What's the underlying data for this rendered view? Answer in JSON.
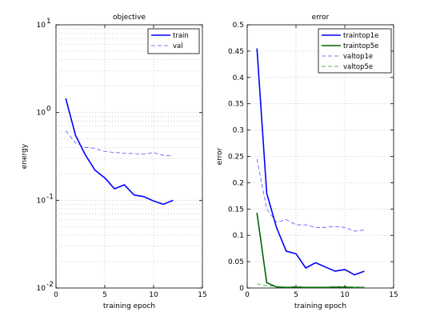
{
  "chart_data": [
    {
      "type": "line",
      "title": "objective",
      "xlabel": "training epoch",
      "ylabel": "energy",
      "xlim": [
        0,
        15
      ],
      "ylim": [
        0.01,
        10
      ],
      "yscale": "log",
      "xticks": [
        0,
        5,
        10,
        15
      ],
      "yticks": [
        {
          "value": 0.01,
          "base": "10",
          "exp": "-2"
        },
        {
          "value": 0.1,
          "base": "10",
          "exp": "-1"
        },
        {
          "value": 1,
          "base": "10",
          "exp": "0"
        },
        {
          "value": 10,
          "base": "10",
          "exp": "1"
        }
      ],
      "grid": true,
      "legend_position": "top-right",
      "series": [
        {
          "name": "train",
          "color": "#0000ff",
          "style": "solid",
          "width": 1.6,
          "x": [
            1,
            2,
            3,
            4,
            5,
            6,
            7,
            8,
            9,
            10,
            11,
            12
          ],
          "y": [
            1.45,
            0.55,
            0.33,
            0.22,
            0.18,
            0.135,
            0.15,
            0.115,
            0.11,
            0.098,
            0.09,
            0.1
          ]
        },
        {
          "name": "val",
          "color": "#5555ff",
          "style": "dashed",
          "width": 0.8,
          "x": [
            1,
            2,
            3,
            4,
            5,
            6,
            7,
            8,
            9,
            10,
            11,
            12
          ],
          "y": [
            0.62,
            0.45,
            0.4,
            0.39,
            0.36,
            0.35,
            0.345,
            0.34,
            0.335,
            0.35,
            0.325,
            0.32
          ]
        }
      ]
    },
    {
      "type": "line",
      "title": "error",
      "xlabel": "training epoch",
      "ylabel": "error",
      "xlim": [
        0,
        15
      ],
      "ylim": [
        0,
        0.5
      ],
      "xticks": [
        0,
        5,
        10,
        15
      ],
      "yticks": [
        0,
        0.05,
        0.1,
        0.15,
        0.2,
        0.25,
        0.3,
        0.35,
        0.4,
        0.45,
        0.5
      ],
      "ytick_labels": [
        "0",
        "0.05",
        "0.1",
        "0.15",
        "0.2",
        "0.25",
        "0.3",
        "0.35",
        "0.4",
        "0.45",
        "0.5"
      ],
      "grid": true,
      "legend_position": "top-right",
      "series": [
        {
          "name": "traintop1e",
          "color": "#0000ff",
          "style": "solid",
          "width": 1.6,
          "x": [
            1,
            2,
            3,
            4,
            5,
            6,
            7,
            8,
            9,
            10,
            11,
            12
          ],
          "y": [
            0.455,
            0.18,
            0.115,
            0.07,
            0.065,
            0.038,
            0.048,
            0.04,
            0.032,
            0.035,
            0.025,
            0.032
          ]
        },
        {
          "name": "traintop5e",
          "color": "#006600",
          "style": "solid",
          "width": 1.6,
          "x": [
            1,
            2,
            3,
            4,
            5,
            6,
            7,
            8,
            9,
            10,
            11,
            12
          ],
          "y": [
            0.143,
            0.01,
            0.002,
            0.001,
            0.002,
            0.001,
            0.001,
            0.001,
            0.002,
            0.002,
            0.001,
            0.001
          ]
        },
        {
          "name": "valtop1e",
          "color": "#5555ff",
          "style": "dashed",
          "width": 0.8,
          "x": [
            1,
            2,
            3,
            4,
            5,
            6,
            7,
            8,
            9,
            10,
            11,
            12
          ],
          "y": [
            0.245,
            0.15,
            0.125,
            0.13,
            0.12,
            0.12,
            0.115,
            0.115,
            0.117,
            0.115,
            0.108,
            0.11
          ]
        },
        {
          "name": "valtop5e",
          "color": "#339933",
          "style": "dashed",
          "width": 0.8,
          "x": [
            1,
            2,
            3,
            4,
            5,
            6,
            7,
            8,
            9,
            10,
            11,
            12
          ],
          "y": [
            0.008,
            0.004,
            0.003,
            0.002,
            0.002,
            0.002,
            0.002,
            0.002,
            0.002,
            0.002,
            0.001,
            0.001
          ]
        }
      ]
    }
  ]
}
